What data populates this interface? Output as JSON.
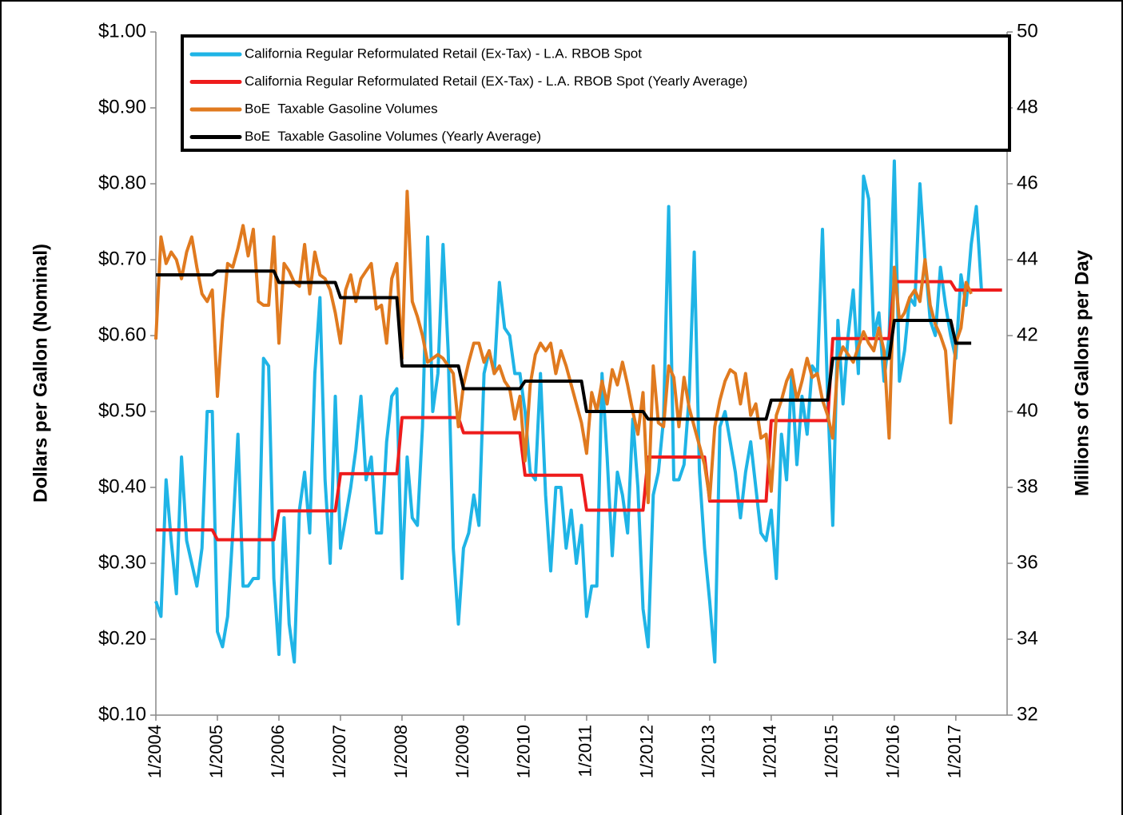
{
  "chart_data": {
    "type": "line",
    "y_label": "Dollars per Gallon (Nominal)",
    "y2_label": "Millions of Gallons per Day",
    "x": [
      "2004-01",
      "2004-02",
      "2004-03",
      "2004-04",
      "2004-05",
      "2004-06",
      "2004-07",
      "2004-08",
      "2004-09",
      "2004-10",
      "2004-11",
      "2004-12",
      "2005-01",
      "2005-02",
      "2005-03",
      "2005-04",
      "2005-05",
      "2005-06",
      "2005-07",
      "2005-08",
      "2005-09",
      "2005-10",
      "2005-11",
      "2005-12",
      "2006-01",
      "2006-02",
      "2006-03",
      "2006-04",
      "2006-05",
      "2006-06",
      "2006-07",
      "2006-08",
      "2006-09",
      "2006-10",
      "2006-11",
      "2006-12",
      "2007-01",
      "2007-02",
      "2007-03",
      "2007-04",
      "2007-05",
      "2007-06",
      "2007-07",
      "2007-08",
      "2007-09",
      "2007-10",
      "2007-11",
      "2007-12",
      "2008-01",
      "2008-02",
      "2008-03",
      "2008-04",
      "2008-05",
      "2008-06",
      "2008-07",
      "2008-08",
      "2008-09",
      "2008-10",
      "2008-11",
      "2008-12",
      "2009-01",
      "2009-02",
      "2009-03",
      "2009-04",
      "2009-05",
      "2009-06",
      "2009-07",
      "2009-08",
      "2009-09",
      "2009-10",
      "2009-11",
      "2009-12",
      "2010-01",
      "2010-02",
      "2010-03",
      "2010-04",
      "2010-05",
      "2010-06",
      "2010-07",
      "2010-08",
      "2010-09",
      "2010-10",
      "2010-11",
      "2010-12",
      "2011-01",
      "2011-02",
      "2011-03",
      "2011-04",
      "2011-05",
      "2011-06",
      "2011-07",
      "2011-08",
      "2011-09",
      "2011-10",
      "2011-11",
      "2011-12",
      "2012-01",
      "2012-02",
      "2012-03",
      "2012-04",
      "2012-05",
      "2012-06",
      "2012-07",
      "2012-08",
      "2012-09",
      "2012-10",
      "2012-11",
      "2012-12",
      "2013-01",
      "2013-02",
      "2013-03",
      "2013-04",
      "2013-05",
      "2013-06",
      "2013-07",
      "2013-08",
      "2013-09",
      "2013-10",
      "2013-11",
      "2013-12",
      "2014-01",
      "2014-02",
      "2014-03",
      "2014-04",
      "2014-05",
      "2014-06",
      "2014-07",
      "2014-08",
      "2014-09",
      "2014-10",
      "2014-11",
      "2014-12",
      "2015-01",
      "2015-02",
      "2015-03",
      "2015-04",
      "2015-05",
      "2015-06",
      "2015-07",
      "2015-08",
      "2015-09",
      "2015-10",
      "2015-11",
      "2015-12",
      "2016-01",
      "2016-02",
      "2016-03",
      "2016-04",
      "2016-05",
      "2016-06",
      "2016-07",
      "2016-08",
      "2016-09",
      "2016-10",
      "2016-11",
      "2016-12",
      "2017-01",
      "2017-02",
      "2017-03",
      "2017-04",
      "2017-05",
      "2017-06",
      "2017-07",
      "2017-08",
      "2017-09",
      "2017-10"
    ],
    "xlim": [
      "2004-01",
      "2017-11"
    ],
    "xticks": [
      {
        "value": "2004-01",
        "label": "1/2004"
      },
      {
        "value": "2005-01",
        "label": "1/2005"
      },
      {
        "value": "2006-01",
        "label": "1/2006"
      },
      {
        "value": "2007-01",
        "label": "1/2007"
      },
      {
        "value": "2008-01",
        "label": "1/2008"
      },
      {
        "value": "2009-01",
        "label": "1/2009"
      },
      {
        "value": "2010-01",
        "label": "1/2010"
      },
      {
        "value": "2011-01",
        "label": "1/2011"
      },
      {
        "value": "2012-01",
        "label": "1/2012"
      },
      {
        "value": "2013-01",
        "label": "1/2013"
      },
      {
        "value": "2014-01",
        "label": "1/2014"
      },
      {
        "value": "2015-01",
        "label": "1/2015"
      },
      {
        "value": "2016-01",
        "label": "1/2016"
      },
      {
        "value": "2017-01",
        "label": "1/2017"
      }
    ],
    "ylim": [
      0.1,
      1.0
    ],
    "yticks": [
      {
        "value": 0.1,
        "label": "$0.10"
      },
      {
        "value": 0.2,
        "label": "$0.20"
      },
      {
        "value": 0.3,
        "label": "$0.30"
      },
      {
        "value": 0.4,
        "label": "$0.40"
      },
      {
        "value": 0.5,
        "label": "$0.50"
      },
      {
        "value": 0.6,
        "label": "$0.60"
      },
      {
        "value": 0.7,
        "label": "$0.70"
      },
      {
        "value": 0.8,
        "label": "$0.80"
      },
      {
        "value": 0.9,
        "label": "$0.90"
      },
      {
        "value": 1.0,
        "label": "$1.00"
      }
    ],
    "y2lim": [
      32,
      50
    ],
    "y2ticks": [
      32,
      34,
      36,
      38,
      40,
      42,
      44,
      46,
      48,
      50
    ],
    "series": [
      {
        "name": "California Regular Reformulated Retail (Ex-Tax) - L.A. RBOB Spot",
        "color": "#1fb4e6",
        "values": [
          0.25,
          0.23,
          0.41,
          0.33,
          0.26,
          0.44,
          0.33,
          0.3,
          0.27,
          0.32,
          0.5,
          0.5,
          0.21,
          0.19,
          0.23,
          0.34,
          0.47,
          0.27,
          0.27,
          0.28,
          0.28,
          0.57,
          0.56,
          0.28,
          0.18,
          0.36,
          0.22,
          0.17,
          0.37,
          0.42,
          0.34,
          0.55,
          0.65,
          0.41,
          0.3,
          0.52,
          0.32,
          0.36,
          0.4,
          0.45,
          0.52,
          0.41,
          0.44,
          0.34,
          0.34,
          0.46,
          0.52,
          0.53,
          0.28,
          0.44,
          0.36,
          0.35,
          0.48,
          0.73,
          0.5,
          0.55,
          0.72,
          0.58,
          0.32,
          0.22,
          0.32,
          0.34,
          0.39,
          0.35,
          0.55,
          0.58,
          0.55,
          0.67,
          0.61,
          0.6,
          0.55,
          0.55,
          0.5,
          0.42,
          0.41,
          0.55,
          0.39,
          0.29,
          0.4,
          0.4,
          0.32,
          0.37,
          0.3,
          0.35,
          0.23,
          0.27,
          0.27,
          0.55,
          0.44,
          0.31,
          0.42,
          0.39,
          0.34,
          0.49,
          0.4,
          0.24,
          0.19,
          0.39,
          0.42,
          0.49,
          0.77,
          0.41,
          0.41,
          0.43,
          0.52,
          0.71,
          0.42,
          0.32,
          0.25,
          0.17,
          0.48,
          0.5,
          0.46,
          0.42,
          0.36,
          0.42,
          0.46,
          0.4,
          0.34,
          0.33,
          0.37,
          0.28,
          0.47,
          0.41,
          0.55,
          0.43,
          0.52,
          0.47,
          0.56,
          0.55,
          0.74,
          0.52,
          0.35,
          0.62,
          0.51,
          0.6,
          0.66,
          0.55,
          0.81,
          0.78,
          0.6,
          0.63,
          0.54,
          0.6,
          0.83,
          0.54,
          0.58,
          0.65,
          0.64,
          0.8,
          0.7,
          0.62,
          0.6,
          0.69,
          0.64,
          0.6,
          0.57,
          0.68,
          0.64,
          0.72,
          0.77,
          0.66,
          0.66,
          0.66,
          0.66,
          0.66
        ]
      },
      {
        "name": "California Regular Reformulated Retail (EX-Tax) - L.A. RBOB Spot (Yearly Average)",
        "color": "#ee1c1c",
        "values": [
          0.344,
          0.344,
          0.344,
          0.344,
          0.344,
          0.344,
          0.344,
          0.344,
          0.344,
          0.344,
          0.344,
          0.344,
          0.331,
          0.331,
          0.331,
          0.331,
          0.331,
          0.331,
          0.331,
          0.331,
          0.331,
          0.331,
          0.331,
          0.331,
          0.369,
          0.369,
          0.369,
          0.369,
          0.369,
          0.369,
          0.369,
          0.369,
          0.369,
          0.369,
          0.369,
          0.369,
          0.418,
          0.418,
          0.418,
          0.418,
          0.418,
          0.418,
          0.418,
          0.418,
          0.418,
          0.418,
          0.418,
          0.418,
          0.492,
          0.492,
          0.492,
          0.492,
          0.492,
          0.492,
          0.492,
          0.492,
          0.492,
          0.492,
          0.492,
          0.492,
          0.472,
          0.472,
          0.472,
          0.472,
          0.472,
          0.472,
          0.472,
          0.472,
          0.472,
          0.472,
          0.472,
          0.472,
          0.416,
          0.416,
          0.416,
          0.416,
          0.416,
          0.416,
          0.416,
          0.416,
          0.416,
          0.416,
          0.416,
          0.416,
          0.37,
          0.37,
          0.37,
          0.37,
          0.37,
          0.37,
          0.37,
          0.37,
          0.37,
          0.37,
          0.37,
          0.37,
          0.44,
          0.44,
          0.44,
          0.44,
          0.44,
          0.44,
          0.44,
          0.44,
          0.44,
          0.44,
          0.44,
          0.44,
          0.382,
          0.382,
          0.382,
          0.382,
          0.382,
          0.382,
          0.382,
          0.382,
          0.382,
          0.382,
          0.382,
          0.382,
          0.488,
          0.488,
          0.488,
          0.488,
          0.488,
          0.488,
          0.488,
          0.488,
          0.488,
          0.488,
          0.488,
          0.488,
          0.596,
          0.596,
          0.596,
          0.596,
          0.596,
          0.596,
          0.596,
          0.596,
          0.596,
          0.596,
          0.596,
          0.596,
          0.671,
          0.671,
          0.671,
          0.671,
          0.671,
          0.671,
          0.671,
          0.671,
          0.671,
          0.671,
          0.671,
          0.671,
          0.66,
          0.66,
          0.66,
          0.66,
          0.66,
          0.66,
          0.66,
          0.66,
          0.66,
          0.66
        ]
      },
      {
        "name": "BoE  Taxable Gasoline Volumes",
        "color": "#e07a1f",
        "axis": "y2",
        "values": [
          41.9,
          44.6,
          43.9,
          44.2,
          44.0,
          43.5,
          44.2,
          44.6,
          43.8,
          43.1,
          42.9,
          43.2,
          40.4,
          42.4,
          43.9,
          43.8,
          44.3,
          44.9,
          44.1,
          44.8,
          42.9,
          42.8,
          42.8,
          44.6,
          41.8,
          43.9,
          43.7,
          43.4,
          43.3,
          44.4,
          43.1,
          44.2,
          43.6,
          43.5,
          43.2,
          42.6,
          41.8,
          43.2,
          43.6,
          42.9,
          43.5,
          43.7,
          43.9,
          42.7,
          42.8,
          41.8,
          43.5,
          43.9,
          41.4,
          45.8,
          42.9,
          42.5,
          42.0,
          41.3,
          41.4,
          41.5,
          41.4,
          41.2,
          41.0,
          39.6,
          40.7,
          41.3,
          41.8,
          41.8,
          41.3,
          41.6,
          41.0,
          41.2,
          40.8,
          40.6,
          39.8,
          40.4,
          38.7,
          40.7,
          41.5,
          41.8,
          41.6,
          41.8,
          41.0,
          41.6,
          41.2,
          40.7,
          40.2,
          39.7,
          38.9,
          40.5,
          40.0,
          40.8,
          40.2,
          41.1,
          40.7,
          41.3,
          40.7,
          40.0,
          39.4,
          40.5,
          37.6,
          41.2,
          39.7,
          39.6,
          41.2,
          40.9,
          39.6,
          40.9,
          40.1,
          39.6,
          39.1,
          38.6,
          37.7,
          39.6,
          40.3,
          40.8,
          41.1,
          41.0,
          40.2,
          41.0,
          39.9,
          40.2,
          39.3,
          39.4,
          37.9,
          39.9,
          40.3,
          40.8,
          41.1,
          40.3,
          40.8,
          41.4,
          40.9,
          41.0,
          40.3,
          39.9,
          39.3,
          41.3,
          41.7,
          41.5,
          41.3,
          41.7,
          42.1,
          41.8,
          41.6,
          42.2,
          41.6,
          39.3,
          43.8,
          42.4,
          42.6,
          43.0,
          43.2,
          42.9,
          44.0,
          42.8,
          42.3,
          42.0,
          41.6,
          39.7,
          41.8,
          42.2,
          43.4,
          43.1,
          null,
          null,
          null,
          null,
          null,
          null
        ]
      },
      {
        "name": "BoE  Taxable Gasoline Volumes (Yearly Average)",
        "color": "#000000",
        "axis": "y2",
        "values": [
          43.6,
          43.6,
          43.6,
          43.6,
          43.6,
          43.6,
          43.6,
          43.6,
          43.6,
          43.6,
          43.6,
          43.6,
          43.7,
          43.7,
          43.7,
          43.7,
          43.7,
          43.7,
          43.7,
          43.7,
          43.7,
          43.7,
          43.7,
          43.7,
          43.4,
          43.4,
          43.4,
          43.4,
          43.4,
          43.4,
          43.4,
          43.4,
          43.4,
          43.4,
          43.4,
          43.4,
          43.0,
          43.0,
          43.0,
          43.0,
          43.0,
          43.0,
          43.0,
          43.0,
          43.0,
          43.0,
          43.0,
          43.0,
          41.2,
          41.2,
          41.2,
          41.2,
          41.2,
          41.2,
          41.2,
          41.2,
          41.2,
          41.2,
          41.2,
          41.2,
          40.6,
          40.6,
          40.6,
          40.6,
          40.6,
          40.6,
          40.6,
          40.6,
          40.6,
          40.6,
          40.6,
          40.6,
          40.8,
          40.8,
          40.8,
          40.8,
          40.8,
          40.8,
          40.8,
          40.8,
          40.8,
          40.8,
          40.8,
          40.8,
          40.0,
          40.0,
          40.0,
          40.0,
          40.0,
          40.0,
          40.0,
          40.0,
          40.0,
          40.0,
          40.0,
          40.0,
          39.8,
          39.8,
          39.8,
          39.8,
          39.8,
          39.8,
          39.8,
          39.8,
          39.8,
          39.8,
          39.8,
          39.8,
          39.8,
          39.8,
          39.8,
          39.8,
          39.8,
          39.8,
          39.8,
          39.8,
          39.8,
          39.8,
          39.8,
          39.8,
          40.3,
          40.3,
          40.3,
          40.3,
          40.3,
          40.3,
          40.3,
          40.3,
          40.3,
          40.3,
          40.3,
          40.3,
          41.4,
          41.4,
          41.4,
          41.4,
          41.4,
          41.4,
          41.4,
          41.4,
          41.4,
          41.4,
          41.4,
          41.4,
          42.4,
          42.4,
          42.4,
          42.4,
          42.4,
          42.4,
          42.4,
          42.4,
          42.4,
          42.4,
          42.4,
          42.4,
          41.8,
          41.8,
          41.8,
          41.8,
          null,
          null,
          null,
          null,
          null,
          null
        ]
      }
    ],
    "legend": "top",
    "grid": false
  }
}
